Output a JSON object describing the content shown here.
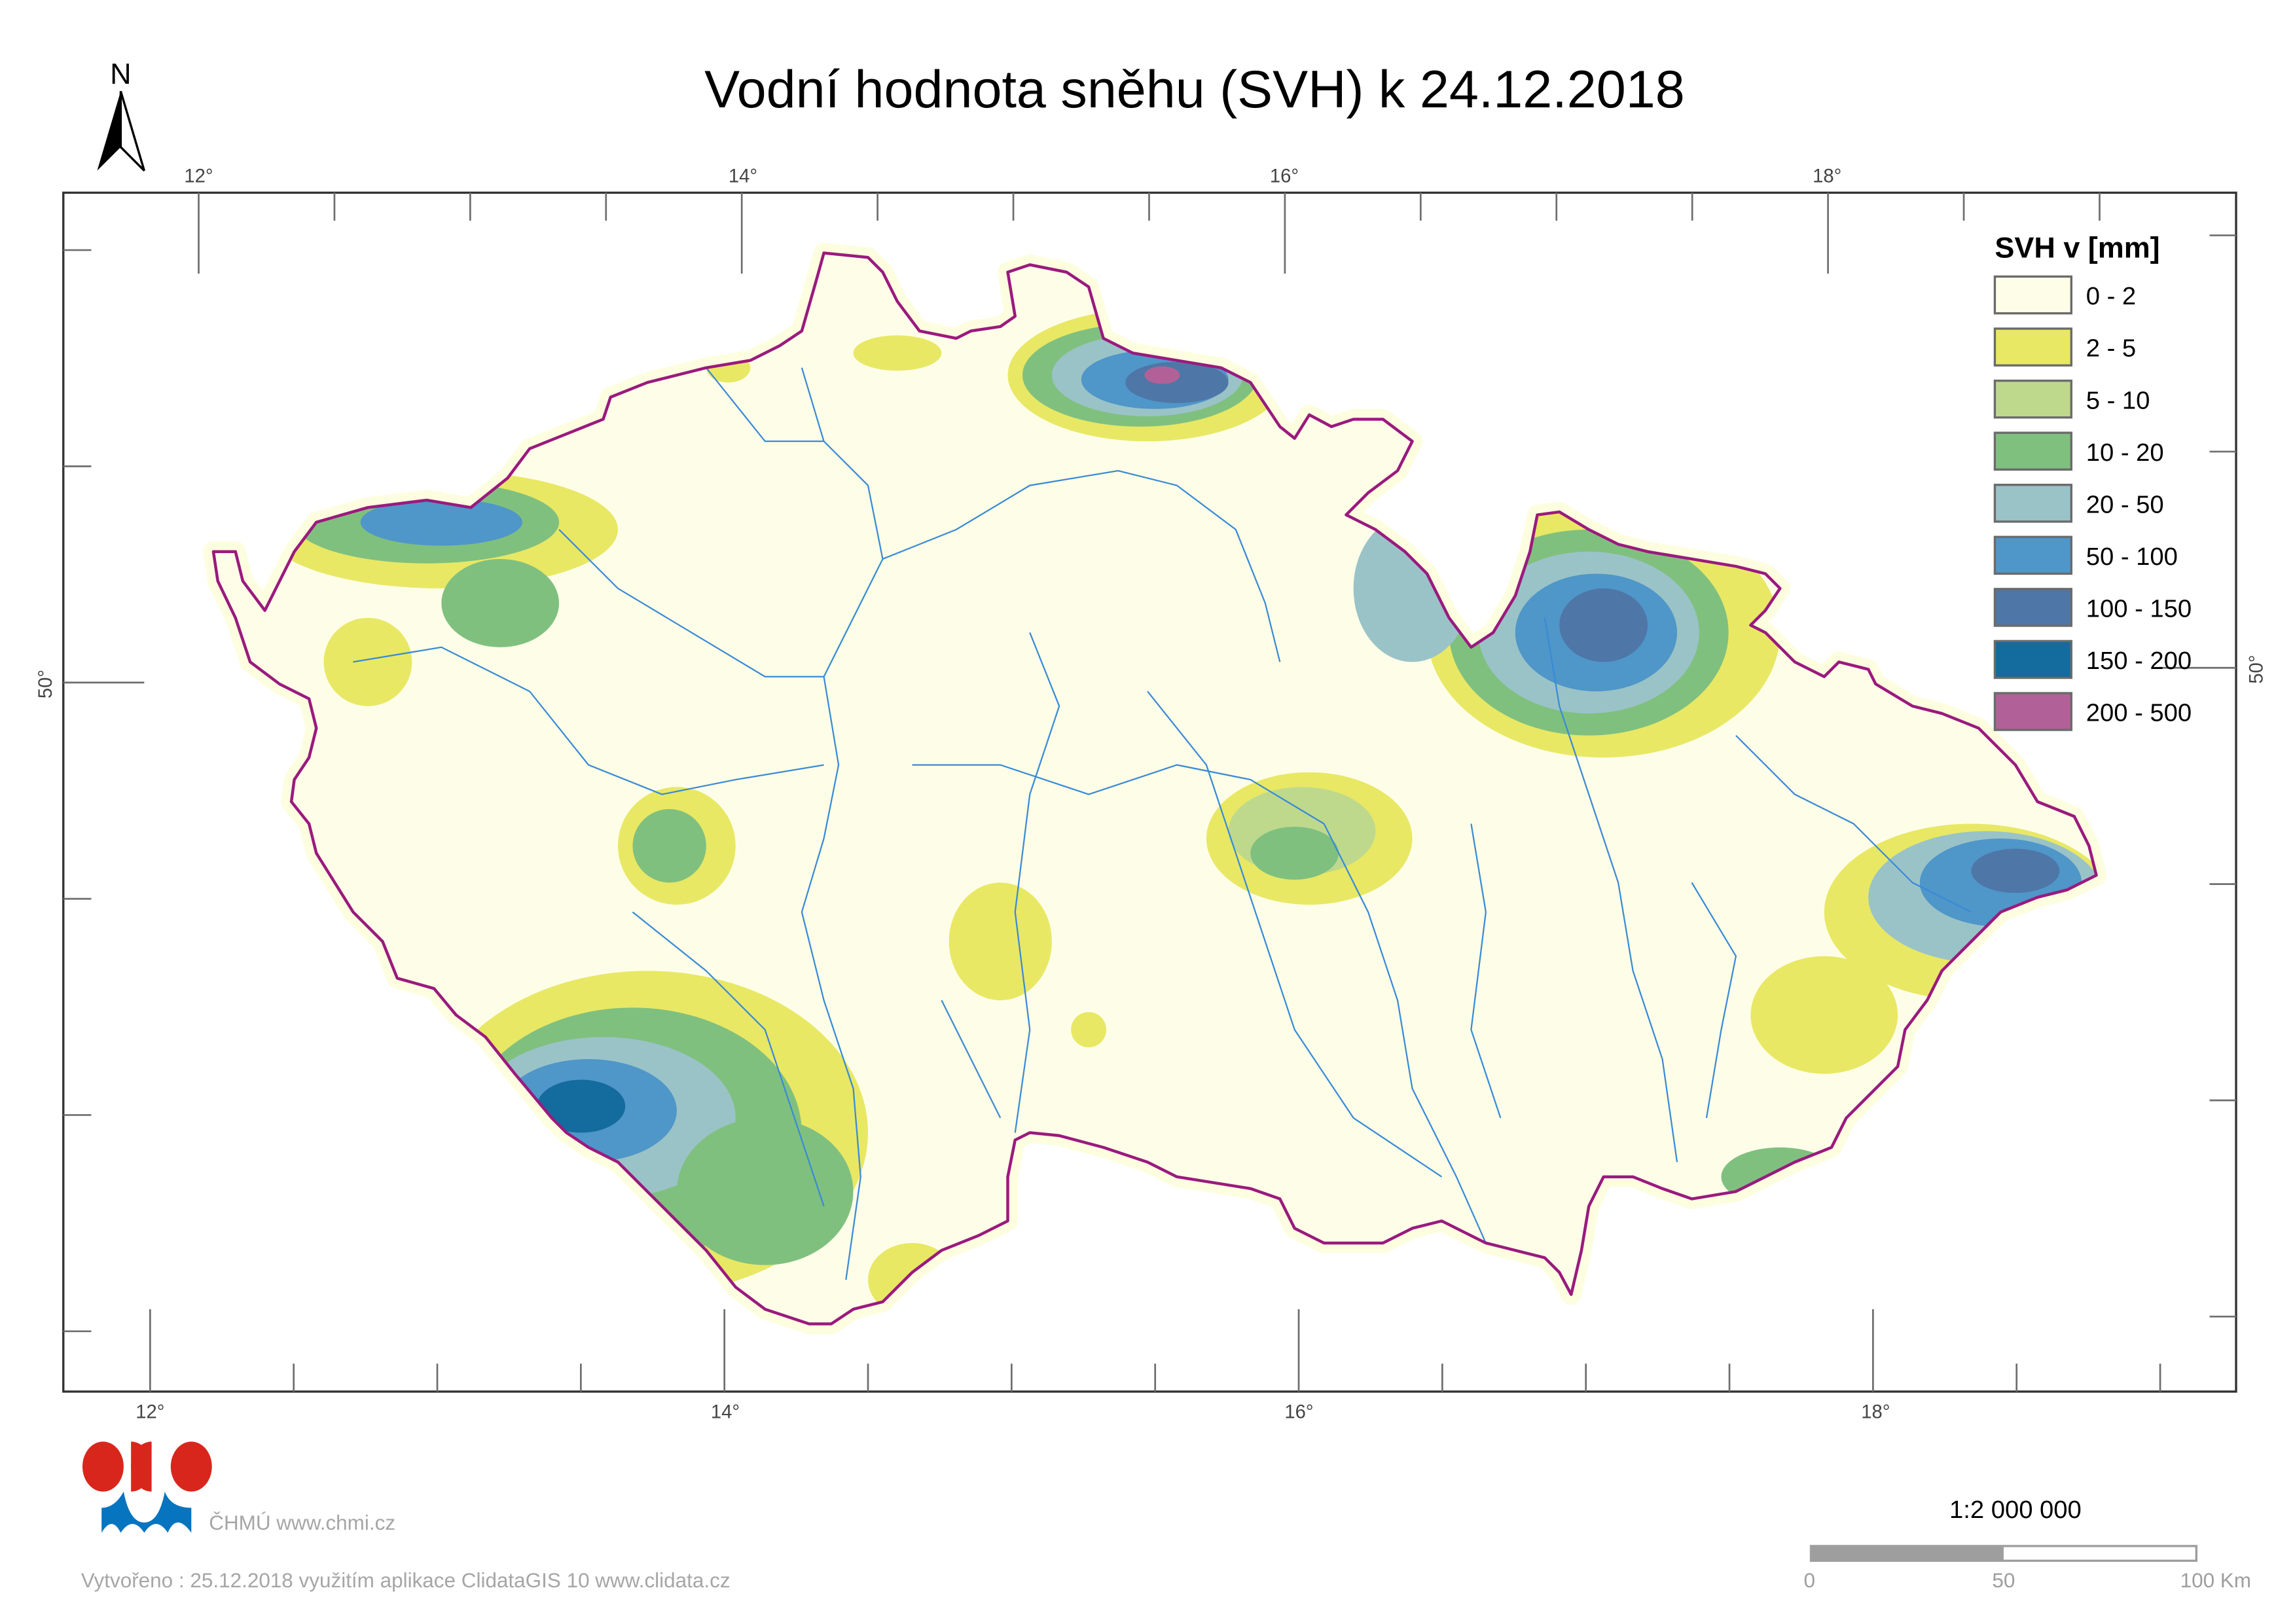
{
  "title": "Vodní hodnota sněhu (SVH) k 24.12.2018",
  "north_arrow": {
    "label": "N"
  },
  "graticule": {
    "top_labels": [
      "12°",
      "14°",
      "16°",
      "18°"
    ],
    "bottom_labels": [
      "12°",
      "14°",
      "16°",
      "18°"
    ],
    "left_label": "50°",
    "right_label": "50°"
  },
  "legend": {
    "title": "SVH v [mm]",
    "items": [
      {
        "label": "0 - 2",
        "color": "#fefee8"
      },
      {
        "label": "2 - 5",
        "color": "#e8e865"
      },
      {
        "label": "5 - 10",
        "color": "#bed98c"
      },
      {
        "label": "10 - 20",
        "color": "#80c07f"
      },
      {
        "label": "20 - 50",
        "color": "#9ac3c8"
      },
      {
        "label": "50 - 100",
        "color": "#4f96c9"
      },
      {
        "label": "100 - 150",
        "color": "#4e76a6"
      },
      {
        "label": "150 - 200",
        "color": "#146b9e"
      },
      {
        "label": "200 - 500",
        "color": "#b26198"
      }
    ]
  },
  "colors": {
    "border": "#9a1a7e",
    "river": "#3a8ad6",
    "logo_red": "#d9261c",
    "logo_blue": "#0674be"
  },
  "scale": {
    "ratio": "1:2 000 000",
    "labels": [
      "0",
      "50",
      "100 Km"
    ]
  },
  "logo": {
    "text": "ČHMÚ www.chmi.cz"
  },
  "footer": "Vytvořeno : 25.12.2018 využitím aplikace ClidataGIS 10 www.clidata.cz"
}
